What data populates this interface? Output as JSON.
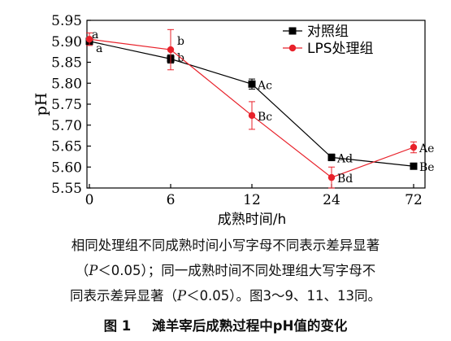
{
  "chart_data": {
    "type": "line",
    "title": "",
    "xlabel": "成熟时间/h",
    "ylabel": "pH",
    "categories": [
      "0",
      "6",
      "12",
      "24",
      "72"
    ],
    "yticks": [
      "5.55",
      "5.60",
      "5.65",
      "5.70",
      "5.75",
      "5.80",
      "5.85",
      "5.90",
      "5.95"
    ],
    "ylim": [
      5.55,
      5.95
    ],
    "grid": false,
    "legend_position": "top-right",
    "series": [
      {
        "name": "对照组",
        "color": "#000000",
        "marker": "square",
        "values": [
          5.9,
          5.858,
          5.798,
          5.623,
          5.602
        ],
        "errors": [
          0.005,
          0.01,
          0.012,
          0.008,
          0.006
        ],
        "labels": [
          "a",
          "b",
          "Ac",
          "Ad",
          "Be"
        ]
      },
      {
        "name": "LPS处理组",
        "color": "#e8212a",
        "marker": "circle",
        "values": [
          5.905,
          5.88,
          5.723,
          5.575,
          5.647
        ],
        "errors": [
          0.015,
          0.048,
          0.033,
          0.025,
          0.013
        ],
        "labels": [
          "a",
          "b",
          "Bc",
          "Bd",
          "Ae"
        ]
      }
    ]
  },
  "caption": {
    "note_line1": "相同处理组不同成熟时间小写字母不同表示差异显著",
    "note_line2_pre": "（",
    "note_line2_p": "P",
    "note_line2_mid": "＜0.05）；同一成熟时间不同处理组大写字母不",
    "note_line3_pre": "同表示差异显著（",
    "note_line3_p": "P",
    "note_line3_post": "＜0.05）。图3～9、11、13同。",
    "fig_num": "图 1",
    "fig_title": "滩羊宰后成熟过程中pH值的变化"
  }
}
